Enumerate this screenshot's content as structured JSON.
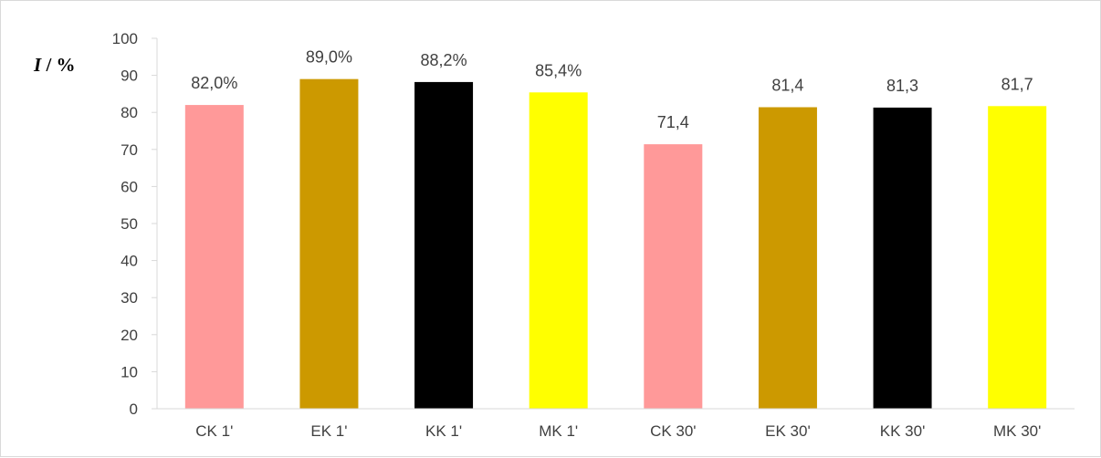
{
  "chart_data": {
    "type": "bar",
    "title": "",
    "xlabel": "",
    "ylabel": {
      "variable": "I",
      "unit": " / %"
    },
    "ylim": [
      0,
      100
    ],
    "yticks": [
      0,
      10,
      20,
      30,
      40,
      50,
      60,
      70,
      80,
      90,
      100
    ],
    "grid": false,
    "legend": "none",
    "categories": [
      "CK 1'",
      "EK 1'",
      "KK 1'",
      "MK 1'",
      "CK 30'",
      "EK 30'",
      "KK 30'",
      "MK 30'"
    ],
    "values": [
      82.0,
      89.0,
      88.2,
      85.4,
      71.4,
      81.4,
      81.3,
      81.7
    ],
    "data_labels": [
      "82,0%",
      "89,0%",
      "88,2%",
      "85,4%",
      "71,4",
      "81,4",
      "81,3",
      "81,7"
    ],
    "colors": [
      "#FF9999",
      "#CC9900",
      "#000000",
      "#FFFF00",
      "#FF9999",
      "#CC9900",
      "#000000",
      "#FFFF00"
    ],
    "axis_color": "#d9d9d9"
  }
}
